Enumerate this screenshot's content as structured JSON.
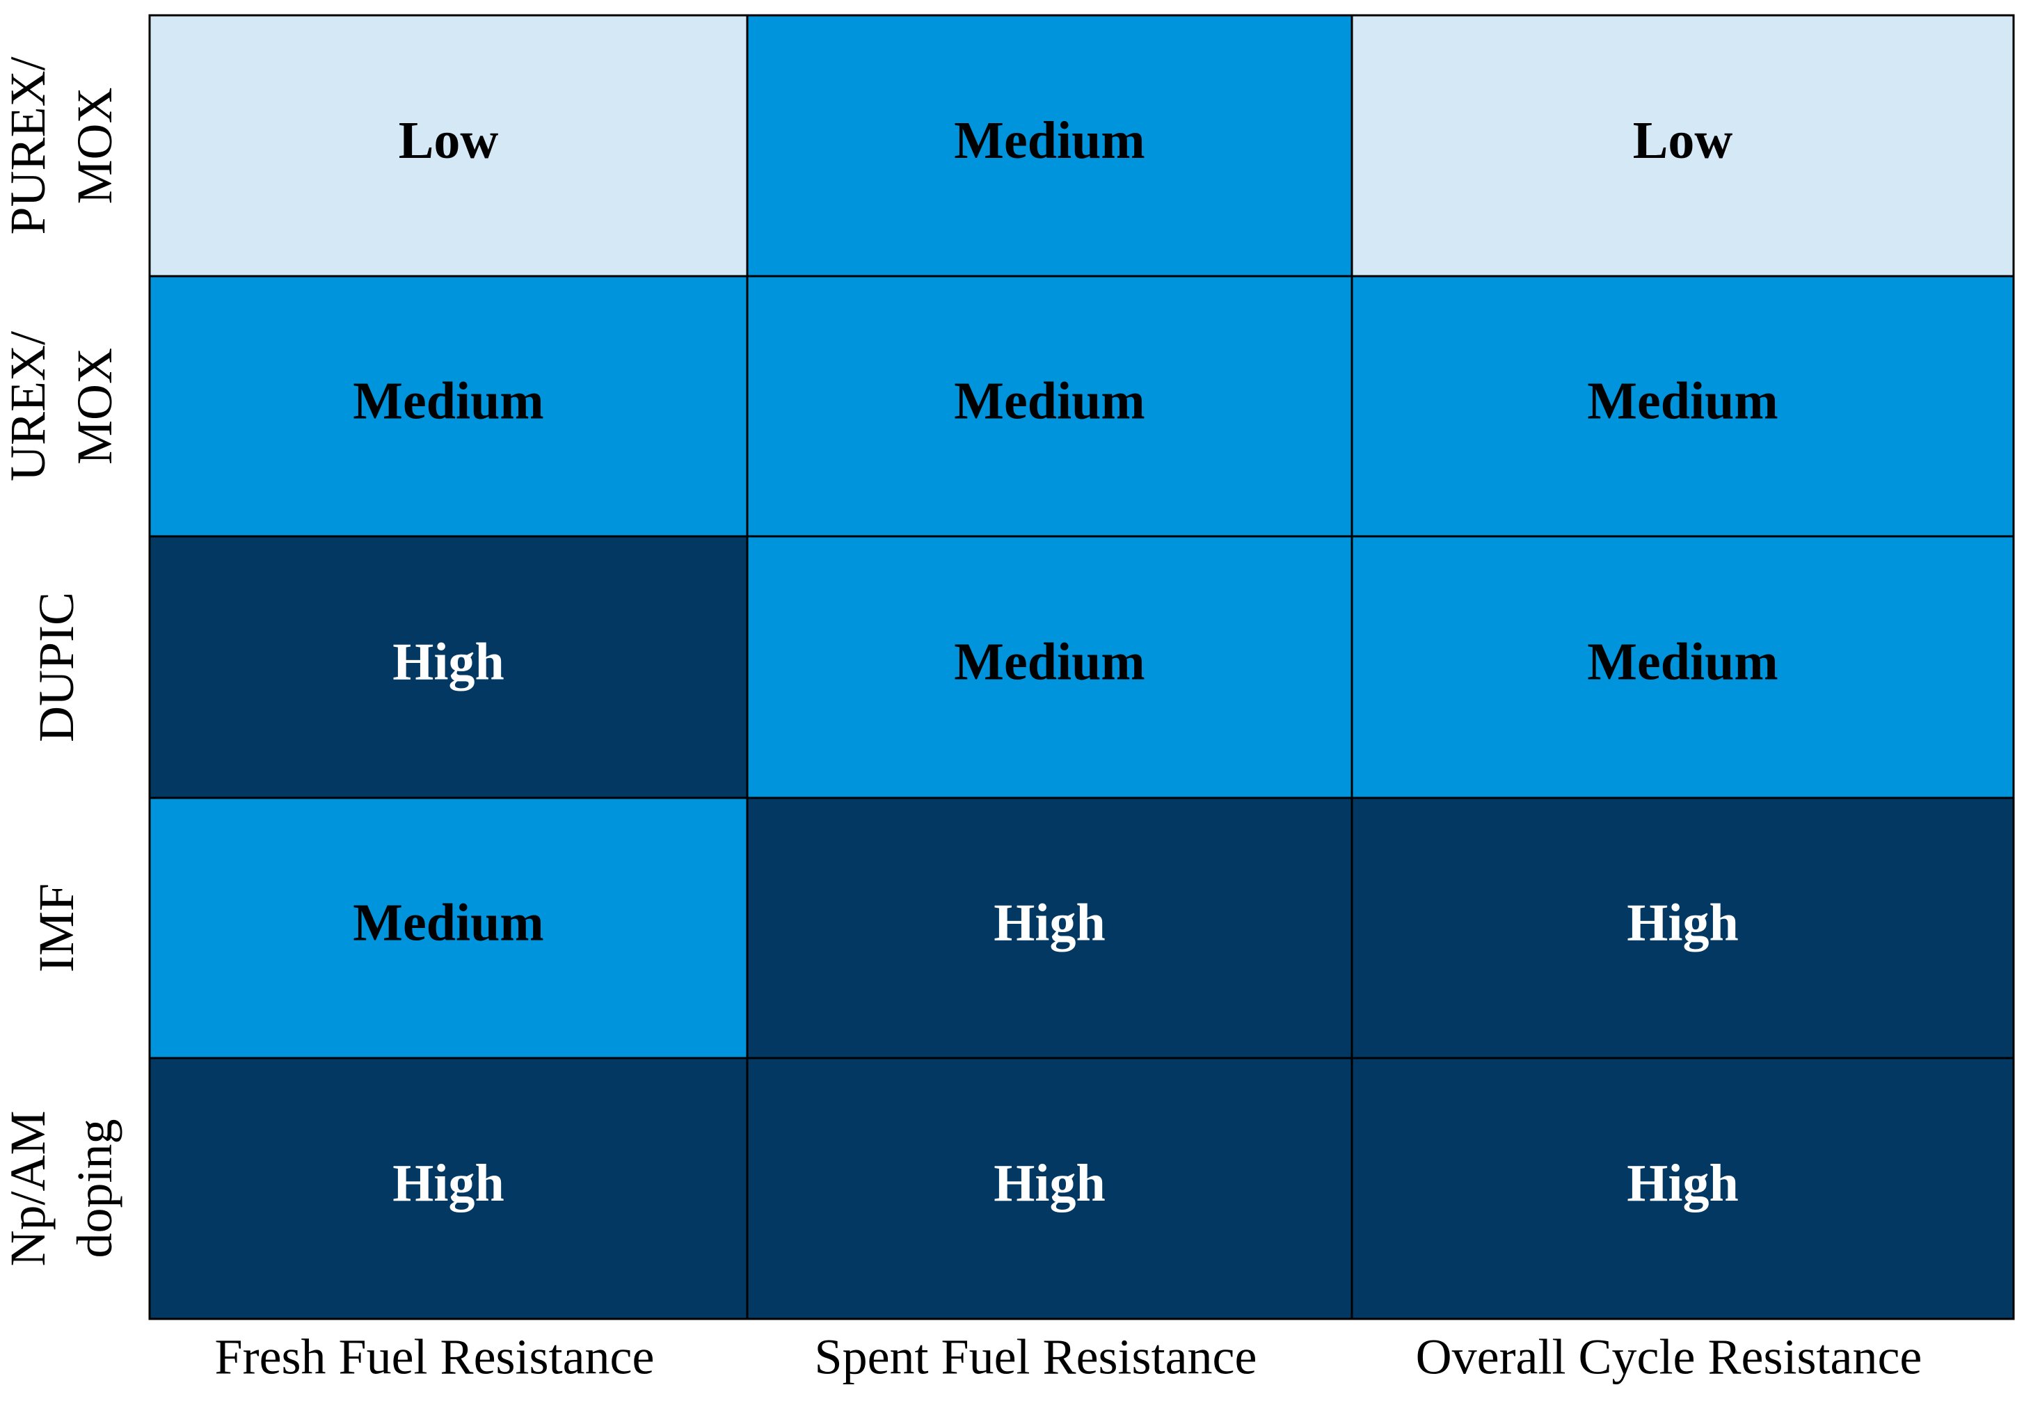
{
  "table": {
    "columns": [
      "Fresh Fuel Resistance",
      "Spent Fuel Resistance",
      "Overall Cycle Resistance"
    ],
    "rows": [
      {
        "label": [
          "PUREX/",
          "MOX"
        ],
        "cells": [
          "Low",
          "Medium",
          "Low"
        ],
        "colors": [
          "#d5e8f6",
          "#0094dc",
          "#d5e8f6"
        ]
      },
      {
        "label": [
          "UREX/",
          "MOX"
        ],
        "cells": [
          "Medium",
          "Medium",
          "Medium"
        ],
        "colors": [
          "#0094dc",
          "#0094dc",
          "#0094dc"
        ]
      },
      {
        "label": [
          "DUPIC"
        ],
        "cells": [
          "High",
          "Medium",
          "Medium"
        ],
        "colors": [
          "#023862",
          "#0094dc",
          "#0094dc"
        ]
      },
      {
        "label": [
          "IMF"
        ],
        "cells": [
          "Medium",
          "High",
          "High"
        ],
        "colors": [
          "#0094dc",
          "#023862",
          "#023862"
        ]
      },
      {
        "label": [
          "Np/AM",
          "doping"
        ],
        "cells": [
          "High",
          "High",
          "High"
        ],
        "colors": [
          "#023862",
          "#023862",
          "#023862"
        ]
      }
    ]
  }
}
